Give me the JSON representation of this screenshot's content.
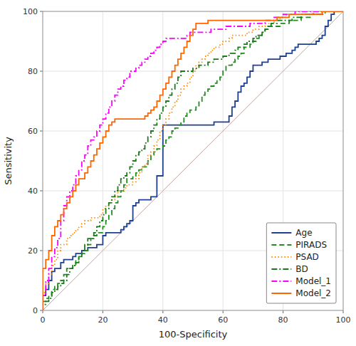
{
  "chart_data": {
    "type": "step",
    "xlabel": "100-Specificity",
    "ylabel": "Sensitivity",
    "x": [
      0,
      0,
      1,
      2,
      3,
      4,
      5,
      6,
      7,
      8,
      9,
      10,
      11,
      12,
      13,
      14,
      15,
      16,
      17,
      18,
      19,
      20,
      21,
      22,
      23,
      24,
      25,
      26,
      27,
      28,
      29,
      30,
      31,
      32,
      33,
      34,
      35,
      36,
      37,
      38,
      39,
      40,
      41,
      42,
      43,
      44,
      45,
      46,
      47,
      48,
      49,
      50,
      51,
      52,
      53,
      54,
      55,
      56,
      57,
      58,
      59,
      60,
      61,
      62,
      63,
      64,
      65,
      66,
      67,
      68,
      69,
      70,
      71,
      72,
      73,
      74,
      75,
      76,
      77,
      78,
      79,
      80,
      81,
      82,
      83,
      84,
      85,
      86,
      87,
      88,
      89,
      90,
      91,
      92,
      93,
      94,
      95,
      96,
      97,
      98,
      99,
      100
    ],
    "series": [
      {
        "name": "Age",
        "color": "#1f3f8f",
        "line_style": "solid",
        "values": [
          0,
          5,
          7,
          10,
          13,
          14,
          14,
          16,
          17,
          17,
          17,
          18,
          19,
          19,
          20,
          20,
          21,
          21,
          21,
          22,
          22,
          25,
          26,
          26,
          26,
          26,
          26,
          27,
          28,
          29,
          30,
          35,
          36,
          37,
          37,
          37,
          37,
          38,
          38,
          45,
          45,
          62,
          62,
          62,
          62,
          62,
          62,
          62,
          62,
          62,
          62,
          62,
          62,
          62,
          62,
          62,
          62,
          62,
          63,
          63,
          63,
          63,
          63,
          65,
          68,
          70,
          73,
          75,
          76,
          78,
          80,
          82,
          82,
          82,
          83,
          83,
          84,
          84,
          84,
          84,
          85,
          85,
          86,
          86,
          87,
          88,
          89,
          89,
          89,
          89,
          89,
          89,
          90,
          91,
          92,
          95,
          97,
          99,
          100,
          100,
          100,
          100
        ]
      },
      {
        "name": "PIRADS",
        "color": "#228B22",
        "line_style": "dashed",
        "values": [
          0,
          3,
          4,
          5,
          7,
          8,
          9,
          10,
          12,
          14,
          14,
          15,
          17,
          18,
          19,
          20,
          22,
          24,
          25,
          26,
          26,
          28,
          30,
          32,
          34,
          36,
          38,
          40,
          42,
          44,
          44,
          45,
          46,
          47,
          48,
          48,
          50,
          52,
          53,
          54,
          54,
          55,
          57,
          58,
          60,
          61,
          62,
          63,
          65,
          66,
          67,
          67,
          68,
          70,
          72,
          73,
          74,
          75,
          76,
          77,
          78,
          80,
          82,
          82,
          83,
          84,
          85,
          86,
          88,
          88,
          89,
          90,
          91,
          92,
          93,
          94,
          95,
          95,
          95,
          95,
          96,
          96,
          96,
          97,
          97,
          97,
          97,
          98,
          98,
          98,
          99,
          99,
          99,
          99,
          99,
          100,
          100,
          100,
          100,
          100,
          100,
          100
        ]
      },
      {
        "name": "PSAD",
        "color": "#FF8C00",
        "line_style": "dotted",
        "values": [
          0,
          6,
          9,
          12,
          15,
          17,
          20,
          22,
          22,
          24,
          25,
          26,
          27,
          28,
          29,
          30,
          30,
          31,
          31,
          31,
          32,
          34,
          35,
          36,
          37,
          38,
          40,
          40,
          41,
          42,
          42,
          43,
          44,
          46,
          48,
          49,
          52,
          53,
          55,
          57,
          60,
          62,
          64,
          66,
          68,
          70,
          72,
          74,
          75,
          76,
          78,
          80,
          82,
          83,
          84,
          85,
          86,
          87,
          88,
          88,
          89,
          90,
          90,
          91,
          92,
          92,
          92,
          92,
          92,
          93,
          93,
          94,
          94,
          95,
          95,
          96,
          96,
          96,
          97,
          97,
          98,
          98,
          99,
          99,
          99,
          99,
          99,
          99,
          99,
          99,
          99,
          100,
          100,
          100,
          100,
          100,
          100,
          100,
          100,
          100,
          100,
          100
        ]
      },
      {
        "name": "BD",
        "color": "#1a7a1a",
        "line_style": "dashdot",
        "values": [
          0,
          2,
          3,
          4,
          6,
          7,
          8,
          9,
          10,
          12,
          14,
          15,
          16,
          18,
          20,
          22,
          24,
          24,
          26,
          28,
          30,
          32,
          34,
          36,
          38,
          40,
          42,
          44,
          45,
          46,
          48,
          50,
          52,
          53,
          54,
          56,
          58,
          60,
          62,
          64,
          66,
          68,
          70,
          72,
          74,
          76,
          78,
          80,
          80,
          80,
          80,
          81,
          81,
          82,
          82,
          82,
          83,
          83,
          84,
          84,
          84,
          85,
          85,
          86,
          86,
          87,
          88,
          88,
          89,
          90,
          90,
          91,
          92,
          92,
          93,
          94,
          95,
          96,
          96,
          97,
          97,
          97,
          97,
          97,
          98,
          98,
          98,
          99,
          99,
          99,
          99,
          99,
          99,
          99,
          100,
          100,
          100,
          100,
          100,
          100,
          100,
          100
        ]
      },
      {
        "name": "Model_1",
        "color": "#FF00FF",
        "line_style": "dashdot",
        "values": [
          0,
          5,
          10,
          14,
          18,
          21,
          24,
          30,
          35,
          38,
          40,
          42,
          45,
          47,
          50,
          52,
          55,
          57,
          58,
          60,
          62,
          64,
          66,
          68,
          70,
          72,
          74,
          75,
          77,
          78,
          80,
          80,
          81,
          82,
          83,
          84,
          85,
          86,
          87,
          88,
          89,
          90,
          91,
          91,
          91,
          91,
          91,
          91,
          91,
          92,
          93,
          93,
          93,
          93,
          93,
          93,
          93,
          94,
          94,
          94,
          94,
          94,
          95,
          95,
          95,
          95,
          95,
          95,
          95,
          95,
          96,
          96,
          96,
          96,
          96,
          97,
          97,
          97,
          98,
          98,
          98,
          99,
          99,
          99,
          99,
          100,
          100,
          100,
          100,
          100,
          100,
          100,
          100,
          100,
          100,
          100,
          100,
          100,
          100,
          100,
          100,
          100
        ]
      },
      {
        "name": "Model_2",
        "color": "#FF6600",
        "line_style": "solid",
        "values": [
          0,
          14,
          17,
          20,
          25,
          28,
          30,
          32,
          34,
          36,
          38,
          40,
          42,
          44,
          44,
          46,
          48,
          50,
          52,
          54,
          56,
          58,
          60,
          62,
          63,
          64,
          64,
          64,
          64,
          64,
          64,
          64,
          64,
          64,
          64,
          65,
          66,
          67,
          68,
          70,
          72,
          74,
          76,
          78,
          80,
          82,
          84,
          86,
          88,
          90,
          92,
          94,
          96,
          96,
          96,
          96,
          97,
          97,
          97,
          97,
          97,
          97,
          97,
          97,
          97,
          97,
          97,
          97,
          97,
          97,
          97,
          97,
          97,
          97,
          97,
          97,
          97,
          97,
          97,
          98,
          98,
          98,
          98,
          99,
          99,
          99,
          99,
          99,
          99,
          99,
          99,
          99,
          99,
          99,
          100,
          100,
          100,
          100,
          100,
          100,
          100,
          100
        ]
      }
    ],
    "xlim": [
      0,
      100
    ],
    "ylim": [
      0,
      100
    ],
    "xticks": [
      0,
      20,
      40,
      60,
      80,
      100
    ],
    "yticks": [
      0,
      20,
      40,
      60,
      80,
      100
    ],
    "grid": true,
    "legend": "lower right"
  }
}
